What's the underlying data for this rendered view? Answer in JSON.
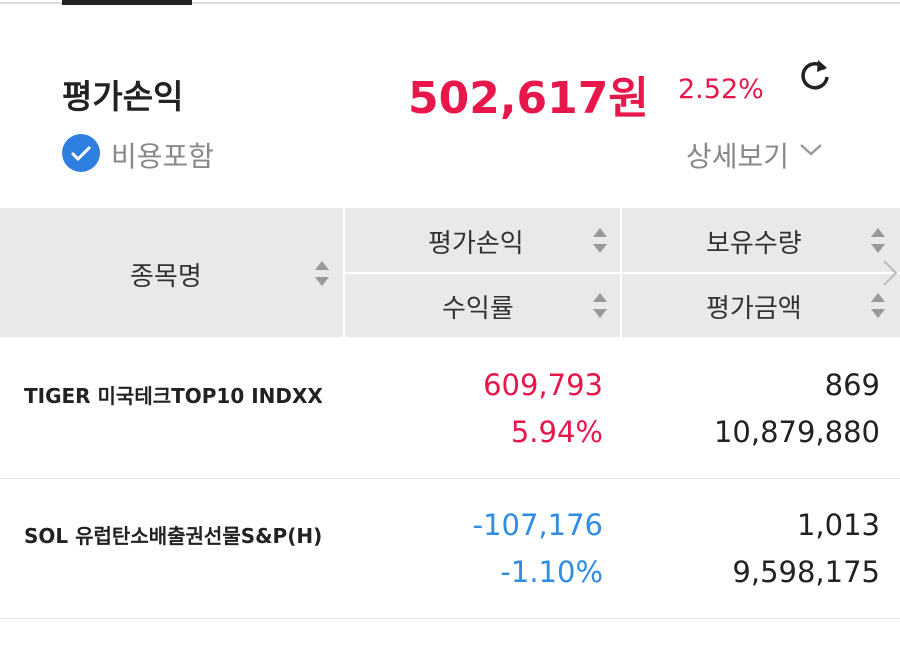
{
  "summary": {
    "label": "평가손익",
    "amount": "502,617원",
    "rate": "2.52%",
    "include_fees": "비용포함",
    "details": "상세보기"
  },
  "table": {
    "headers": {
      "name": "종목명",
      "pnl": "평가손익",
      "rate": "수익률",
      "qty": "보유수량",
      "value": "평가금액"
    },
    "rows": [
      {
        "name": "TIGER 미국테크TOP10 INDXX",
        "pnl": "609,793",
        "rate": "5.94%",
        "qty": "869",
        "value": "10,879,880"
      },
      {
        "name": "SOL 유럽탄소배출권선물S&P(H)",
        "pnl": "-107,176",
        "rate": "-1.10%",
        "qty": "1,013",
        "value": "9,598,175"
      }
    ]
  }
}
